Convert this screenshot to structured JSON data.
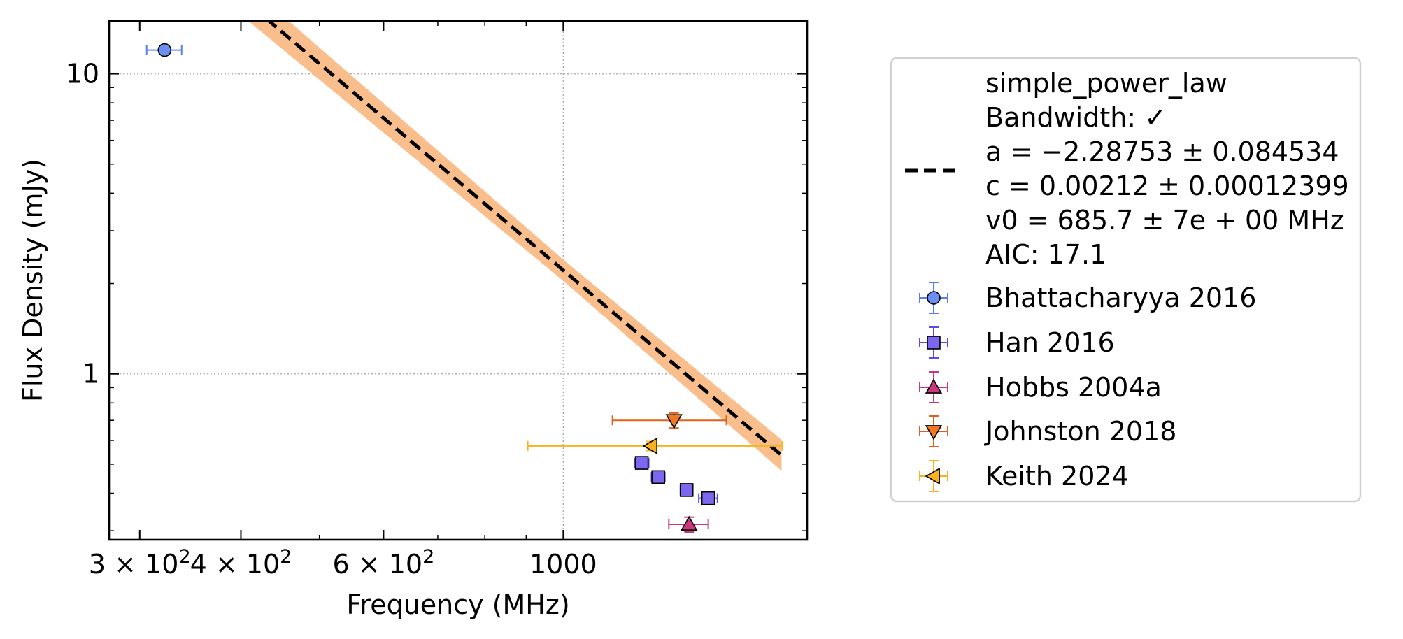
{
  "chart_data": {
    "type": "scatter",
    "xlabel": "Frequency (MHz)",
    "ylabel": "Flux Density (mJy)",
    "x_scale": "log",
    "y_scale": "log",
    "xlim": [
      275,
      2000
    ],
    "ylim": [
      0.28,
      15
    ],
    "grid": true,
    "legend_position": "outside-right",
    "x_ticks": [
      {
        "value": 300,
        "base": "3 × 10",
        "exp": "2"
      },
      {
        "value": 400,
        "base": "4 × 10",
        "exp": "2"
      },
      {
        "value": 600,
        "base": "6 × 10",
        "exp": "2"
      },
      {
        "value": 1000,
        "base": "1000",
        "exp": ""
      }
    ],
    "y_ticks": [
      {
        "value": 1,
        "label": "1"
      },
      {
        "value": 10,
        "label": "10"
      }
    ],
    "fit": {
      "model_label": "simple_power_law",
      "bandwidth_label": "Bandwidth: ✓",
      "a_label": "a = −2.28753 ± 0.084534",
      "c_label": "c = 0.00212 ± 0.00012399",
      "v0_label": "v0 = 685.7 ± 7e + 00 MHz",
      "aic_label": "AIC: 17.1",
      "a": -2.28753,
      "c": 0.00212,
      "v0": 685.7,
      "x_range": [
        310,
        1860
      ],
      "band_fraction": 0.085,
      "line_color": "#000000",
      "band_color": "#f9be8c"
    },
    "series": [
      {
        "name": "Bhattacharyya 2016",
        "marker": "circle",
        "color": "#6b8ff5",
        "edge_color": "#5a7ee8",
        "points": [
          {
            "x": 322,
            "y": 12.0,
            "xerr": 16,
            "yerr": 0
          }
        ]
      },
      {
        "name": "Han 2016",
        "marker": "square",
        "color": "#7b68ee",
        "edge_color": "#5a4ee0",
        "points": [
          {
            "x": 1250,
            "y": 0.505,
            "xerr": 25,
            "yerr": 0.012
          },
          {
            "x": 1310,
            "y": 0.453,
            "xerr": 25,
            "yerr": 0.012
          },
          {
            "x": 1420,
            "y": 0.41,
            "xerr": 25,
            "yerr": 0.012
          },
          {
            "x": 1510,
            "y": 0.385,
            "xerr": 40,
            "yerr": 0.012
          }
        ]
      },
      {
        "name": "Hobbs 2004a",
        "marker": "triangle-up",
        "color": "#c8387a",
        "edge_color": "#c8387a",
        "points": [
          {
            "x": 1430,
            "y": 0.315,
            "xerr": 80,
            "yerr": 0.018
          }
        ]
      },
      {
        "name": "Johnston 2018",
        "marker": "triangle-down",
        "color": "#f07a23",
        "edge_color": "#e0601a",
        "points": [
          {
            "x": 1370,
            "y": 0.7,
            "xerr": 220,
            "yerr": 0.04
          }
        ]
      },
      {
        "name": "Keith 2024",
        "marker": "triangle-left",
        "color": "#f7b21d",
        "edge_color": "#f7b21d",
        "points": [
          {
            "x": 1284,
            "y": 0.575,
            "xerr": 380,
            "xerr_hi": 580,
            "yerr": 0.02
          }
        ]
      }
    ]
  }
}
